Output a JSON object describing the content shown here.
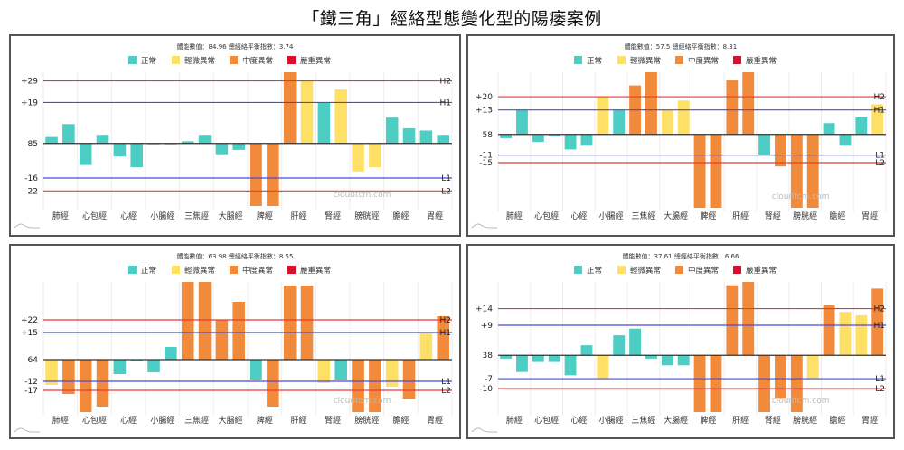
{
  "page": {
    "title": "「鐵三角」經絡型態變化型的陽痿案例"
  },
  "chart_data": [
    {
      "type": "bar",
      "stats": "體能數值：84.96 總經絡平衡指數：3.74",
      "baseline_label": "85",
      "lines": [
        {
          "name": "H2",
          "label": "+29",
          "value": 29,
          "color": "#e8393a"
        },
        {
          "name": "H1",
          "label": "+19",
          "value": 19,
          "color": "#4b4bd8"
        },
        {
          "name": "L1",
          "label": "-16",
          "value": -16,
          "color": "#4b4bd8"
        },
        {
          "name": "L2",
          "label": "-22",
          "value": -22,
          "color": "#e8393a"
        }
      ],
      "ylim": [
        -29,
        33
      ],
      "values": [
        3,
        9,
        -10,
        4,
        -6,
        -11,
        0,
        0,
        1,
        4,
        -5,
        -3,
        -29,
        -29,
        33,
        29,
        19,
        25,
        -13,
        -11,
        12,
        7,
        6,
        4
      ],
      "levels": [
        "n",
        "n",
        "n",
        "n",
        "n",
        "n",
        "n",
        "n",
        "n",
        "n",
        "n",
        "n",
        "m",
        "m",
        "m",
        "l",
        "n",
        "l",
        "l",
        "l",
        "n",
        "n",
        "n",
        "n"
      ]
    },
    {
      "type": "bar",
      "stats": "體能數值：57.5 總經絡平衡指數：8.31",
      "baseline_label": "58",
      "lines": [
        {
          "name": "H2",
          "label": "+20",
          "value": 20,
          "color": "#e8393a"
        },
        {
          "name": "H1",
          "label": "+13",
          "value": 13,
          "color": "#4b4bd8"
        },
        {
          "name": "L1",
          "label": "-11",
          "value": -11,
          "color": "#4b4bd8"
        },
        {
          "name": "L2",
          "label": "-15",
          "value": -15,
          "color": "#e8393a"
        }
      ],
      "ylim": [
        -39,
        33
      ],
      "values": [
        -2,
        13,
        -4,
        -1,
        -8,
        -6,
        20,
        13,
        26,
        33,
        13,
        18,
        -39,
        -39,
        29,
        33,
        -11,
        -17,
        -39,
        -39,
        6,
        -6,
        9,
        16
      ],
      "levels": [
        "n",
        "n",
        "n",
        "n",
        "n",
        "n",
        "l",
        "n",
        "m",
        "m",
        "l",
        "l",
        "m",
        "m",
        "m",
        "m",
        "n",
        "m",
        "m",
        "m",
        "n",
        "n",
        "n",
        "l"
      ]
    },
    {
      "type": "bar",
      "stats": "體能數值：63.98 總經絡平衡指數：8.55",
      "baseline_label": "64",
      "lines": [
        {
          "name": "H2",
          "label": "+22",
          "value": 22,
          "color": "#e8393a"
        },
        {
          "name": "H1",
          "label": "+15",
          "value": 15,
          "color": "#4b4bd8"
        },
        {
          "name": "L1",
          "label": "-12",
          "value": -12,
          "color": "#4b4bd8"
        },
        {
          "name": "L2",
          "label": "-17",
          "value": -17,
          "color": "#e8393a"
        }
      ],
      "ylim": [
        -29,
        43
      ],
      "values": [
        -14,
        -19,
        -29,
        -26,
        -8,
        -1,
        -7,
        7,
        43,
        43,
        22,
        32,
        -11,
        -26,
        41,
        41,
        -13,
        -11,
        -29,
        -29,
        -15,
        -22,
        15,
        24
      ],
      "levels": [
        "l",
        "m",
        "m",
        "m",
        "n",
        "n",
        "n",
        "n",
        "m",
        "m",
        "m",
        "m",
        "n",
        "m",
        "m",
        "m",
        "l",
        "n",
        "m",
        "m",
        "l",
        "m",
        "l",
        "m"
      ]
    },
    {
      "type": "bar",
      "stats": "體能數值：37.61 總經絡平衡指數：6.66",
      "baseline_label": "38",
      "lines": [
        {
          "name": "H2",
          "label": "+14",
          "value": 14,
          "color": "#e8393a"
        },
        {
          "name": "H1",
          "label": "+9",
          "value": 9,
          "color": "#4b4bd8"
        },
        {
          "name": "L1",
          "label": "-7",
          "value": -7,
          "color": "#4b4bd8"
        },
        {
          "name": "L2",
          "label": "-10",
          "value": -10,
          "color": "#e8393a"
        }
      ],
      "ylim": [
        -17,
        22
      ],
      "values": [
        -1,
        -5,
        -2,
        -2,
        -6,
        3,
        -7,
        6,
        8,
        -1,
        -3,
        -3,
        -17,
        -17,
        21,
        22,
        -17,
        -13,
        -17,
        -7,
        15,
        13,
        12,
        20
      ],
      "levels": [
        "n",
        "n",
        "n",
        "n",
        "n",
        "n",
        "l",
        "n",
        "n",
        "n",
        "n",
        "n",
        "m",
        "m",
        "m",
        "m",
        "m",
        "m",
        "m",
        "l",
        "m",
        "l",
        "l",
        "m"
      ]
    }
  ],
  "categories": [
    "肺經",
    "心包經",
    "心經",
    "小腸經",
    "三焦經",
    "大腸經",
    "脾經",
    "肝經",
    "腎經",
    "膀胱經",
    "膽經",
    "胃經"
  ],
  "legend": [
    {
      "key": "n",
      "label": "正常",
      "color": "#4ecdc4"
    },
    {
      "key": "l",
      "label": "輕微異常",
      "color": "#ffe066"
    },
    {
      "key": "m",
      "label": "中度異常",
      "color": "#f28a3c"
    },
    {
      "key": "s",
      "label": "嚴重異常",
      "color": "#d7102c"
    }
  ],
  "watermark": "cloudtcm.com"
}
